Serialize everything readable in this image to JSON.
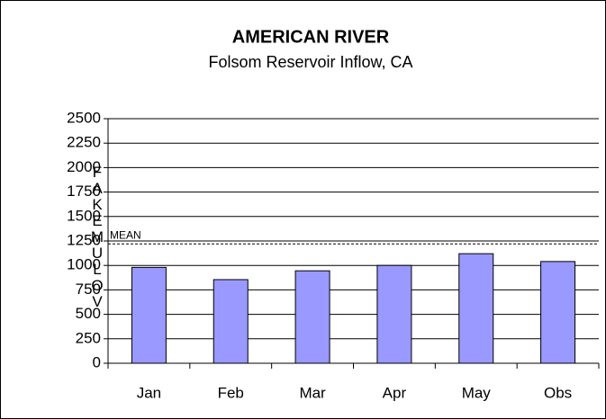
{
  "chart_data": {
    "type": "bar",
    "title": "AMERICAN RIVER",
    "subtitle": "Folsom Reservoir Inflow, CA",
    "y_label": "FAKEMULOV",
    "categories": [
      "Jan",
      "Feb",
      "Mar",
      "Apr",
      "May",
      "Obs"
    ],
    "values": [
      980,
      855,
      945,
      1000,
      1120,
      1040
    ],
    "color": "#9999ff",
    "ylim": [
      0,
      2500
    ],
    "yticks": [
      0,
      250,
      500,
      750,
      1000,
      1250,
      1500,
      1750,
      2000,
      2250,
      2500
    ],
    "grid": true,
    "mean": {
      "label": "MEAN",
      "value": 1220
    }
  }
}
